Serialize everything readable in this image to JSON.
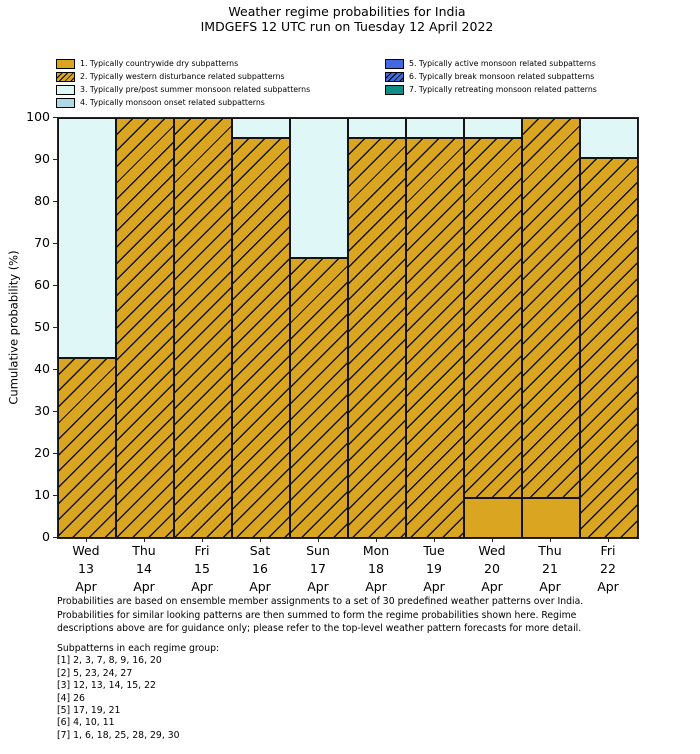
{
  "title": {
    "line1": "Weather regime probabilities for India",
    "line2": "IMDGEFS 12 UTC run on Tuesday 12 April 2022"
  },
  "legend": {
    "columns": [
      [
        {
          "label": "1. Typically countrywide dry subpatterns",
          "color": "#DAA520",
          "hatch": false
        },
        {
          "label": "2. Typically western disturbance related subpatterns",
          "color": "#DAA520",
          "hatch": true
        },
        {
          "label": "3. Typically pre/post summer monsoon related subpatterns",
          "color": "#E0F7F8",
          "hatch": false
        },
        {
          "label": "4. Typically monsoon onset related subpatterns",
          "color": "#ADD8E6",
          "hatch": false
        }
      ],
      [
        {
          "label": "5. Typically active monsoon related subpatterns",
          "color": "#4169E1",
          "hatch": false
        },
        {
          "label": "6. Typically break monsoon related subpatterns",
          "color": "#4169E1",
          "hatch": true
        },
        {
          "label": "7. Typically retreating monsoon related patterns",
          "color": "#0E8C85",
          "hatch": false
        }
      ]
    ]
  },
  "chart_data": {
    "type": "bar",
    "stacked": true,
    "title": "Weather regime probabilities for India",
    "subtitle": "IMDGEFS 12 UTC run on Tuesday 12 April 2022",
    "xlabel": "",
    "ylabel": "Cumulative probability (%)",
    "ylim": [
      0,
      100
    ],
    "yticks": [
      0,
      10,
      20,
      30,
      40,
      50,
      60,
      70,
      80,
      90,
      100
    ],
    "grid": false,
    "legend_position": "top-two-columns",
    "categories": [
      "Wed 13 Apr",
      "Thu 14 Apr",
      "Fri 15 Apr",
      "Sat 16 Apr",
      "Sun 17 Apr",
      "Mon 18 Apr",
      "Tue 19 Apr",
      "Wed 20 Apr",
      "Thu 21 Apr",
      "Fri 22 Apr"
    ],
    "x_tick_lines": [
      [
        "Wed",
        "13",
        "Apr"
      ],
      [
        "Thu",
        "14",
        "Apr"
      ],
      [
        "Fri",
        "15",
        "Apr"
      ],
      [
        "Sat",
        "16",
        "Apr"
      ],
      [
        "Sun",
        "17",
        "Apr"
      ],
      [
        "Mon",
        "18",
        "Apr"
      ],
      [
        "Tue",
        "19",
        "Apr"
      ],
      [
        "Wed",
        "20",
        "Apr"
      ],
      [
        "Thu",
        "21",
        "Apr"
      ],
      [
        "Fri",
        "22",
        "Apr"
      ]
    ],
    "series": [
      {
        "name": "1. Typically countrywide dry subpatterns",
        "color": "#DAA520",
        "hatch": false,
        "values": [
          0,
          0,
          0,
          0,
          0,
          0,
          0,
          9.5,
          9.5,
          0
        ]
      },
      {
        "name": "2. Typically western disturbance related subpatterns",
        "color": "#DAA520",
        "hatch": true,
        "values": [
          42.9,
          100,
          100,
          95.2,
          66.7,
          95.2,
          95.2,
          85.7,
          90.5,
          90.5
        ]
      },
      {
        "name": "3. Typically pre/post summer monsoon related subpatterns",
        "color": "#E0F7F8",
        "hatch": false,
        "values": [
          57.1,
          0,
          0,
          4.8,
          33.3,
          4.8,
          4.8,
          4.8,
          0,
          9.5
        ]
      },
      {
        "name": "4. Typically monsoon onset related subpatterns",
        "color": "#ADD8E6",
        "hatch": false,
        "values": [
          0,
          0,
          0,
          0,
          0,
          0,
          0,
          0,
          0,
          0
        ]
      },
      {
        "name": "5. Typically active monsoon related subpatterns",
        "color": "#4169E1",
        "hatch": false,
        "values": [
          0,
          0,
          0,
          0,
          0,
          0,
          0,
          0,
          0,
          0
        ]
      },
      {
        "name": "6. Typically break monsoon related subpatterns",
        "color": "#4169E1",
        "hatch": true,
        "values": [
          0,
          0,
          0,
          0,
          0,
          0,
          0,
          0,
          0,
          0
        ]
      },
      {
        "name": "7. Typically retreating monsoon related patterns",
        "color": "#0E8C85",
        "hatch": false,
        "values": [
          0,
          0,
          0,
          0,
          0,
          0,
          0,
          0,
          0,
          0
        ]
      }
    ],
    "edge_color": "#141414"
  },
  "footer": {
    "lines": [
      "Probabilities are based on ensemble member assignments to a set of 30 predefined weather patterns over India.",
      "Probabilities for similar looking patterns are then summed to form the regime probabilities shown here. Regime",
      "descriptions above are for guidance only; please refer to the top-level weather pattern forecasts for more detail."
    ]
  },
  "subpatterns": {
    "heading": "Subpatterns in each regime group:",
    "groups": [
      "[1] 2, 3, 7, 8, 9, 16, 20",
      "[2] 5, 23, 24, 27",
      "[3] 12, 13, 14, 15, 22",
      "[4] 26",
      "[5] 17, 19, 21",
      "[6] 4, 10, 11",
      "[7] 1, 6, 18, 25, 28, 29, 30"
    ]
  }
}
